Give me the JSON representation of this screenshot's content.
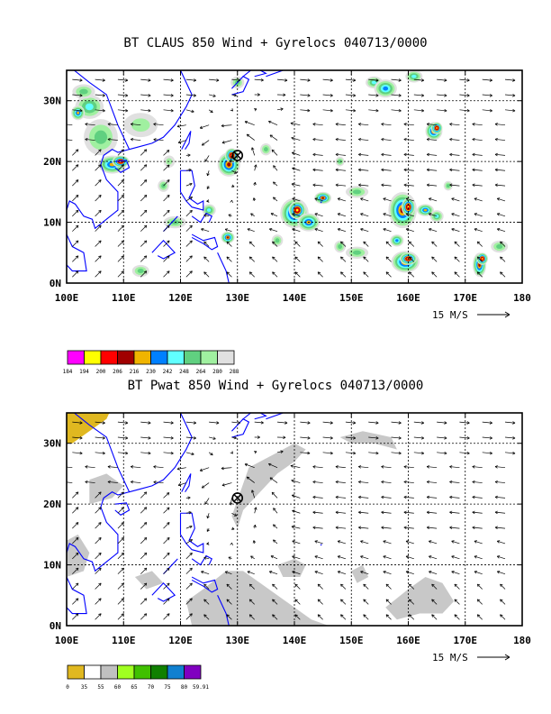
{
  "panels": [
    {
      "title": "BT CLAUS 850 Wind + Gyrelocs 040713/0000",
      "x_ticks": [
        "100E",
        "110E",
        "120E",
        "130E",
        "140E",
        "150E",
        "160E",
        "170E",
        "180"
      ],
      "y_ticks": [
        "0N",
        "10N",
        "20N",
        "30N"
      ],
      "scale_label": "15 M/S",
      "legend": {
        "colors": [
          "#ff00ff",
          "#ffff00",
          "#ff0000",
          "#a00000",
          "#f0b400",
          "#0080ff",
          "#60ffff",
          "#60d080",
          "#a0f0a0",
          "#e0e0e0"
        ],
        "labels": [
          "184",
          "194",
          "200",
          "206",
          "216",
          "230",
          "242",
          "248",
          "264",
          "280",
          "288"
        ]
      }
    },
    {
      "title": "BT Pwat 850 Wind + Gyrelocs 040713/0000",
      "x_ticks": [
        "100E",
        "110E",
        "120E",
        "130E",
        "140E",
        "150E",
        "160E",
        "170E",
        "180"
      ],
      "y_ticks": [
        "0N",
        "10N",
        "20N",
        "30N"
      ],
      "scale_label": "15 M/S",
      "legend": {
        "colors": [
          "#e0b820",
          "#ffffff",
          "#c0c0c0",
          "#a0ff20",
          "#40c000",
          "#108000",
          "#1080d0",
          "#8000c0"
        ],
        "labels": [
          "0",
          "35",
          "55",
          "60",
          "65",
          "70",
          "75",
          "80",
          "59.91"
        ]
      }
    }
  ],
  "gyre_location": {
    "lon": 130,
    "lat": 21
  }
}
